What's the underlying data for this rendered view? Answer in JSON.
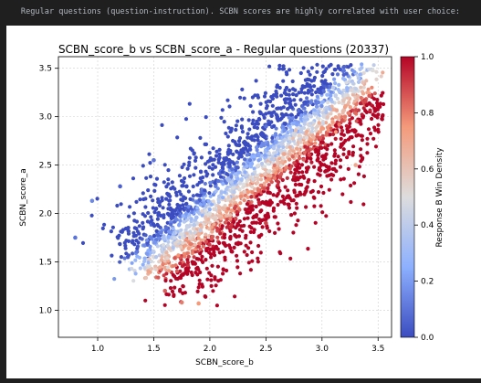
{
  "caption": "Regular questions (question-instruction). SCBN scores are highly correlated with user choice:",
  "chart_data": {
    "type": "scatter",
    "title": "SCBN_score_b vs SCBN_score_a - Regular questions (20337)",
    "xlabel": "SCBN_score_b",
    "ylabel": "SCBN_score_a",
    "xlim": [
      0.65,
      3.62
    ],
    "ylim": [
      0.72,
      3.62
    ],
    "xticks": [
      "1.0",
      "1.5",
      "2.0",
      "2.5",
      "3.0",
      "3.5"
    ],
    "yticks": [
      "1.0",
      "1.5",
      "2.0",
      "2.5",
      "3.0",
      "3.5"
    ],
    "grid": true,
    "colormap": "coolwarm",
    "colorbar": {
      "label": "Response B Win Density",
      "range": [
        0.0,
        1.0
      ],
      "ticks": [
        "0.0",
        "0.2",
        "0.4",
        "0.6",
        "0.8",
        "1.0"
      ]
    },
    "point_count": 20337,
    "relationship": "strong positive correlation along the diagonal; points above the diagonal (A higher than B) are blue (low B win density), points below the diagonal are red (high B win density)",
    "sample_points": [
      {
        "x": 0.8,
        "y": 1.75,
        "density": 0.1
      },
      {
        "x": 0.95,
        "y": 2.13,
        "density": 0.15
      },
      {
        "x": 1.2,
        "y": 2.28,
        "density": 0.05
      },
      {
        "x": 1.5,
        "y": 2.55,
        "density": 0.1
      },
      {
        "x": 1.6,
        "y": 1.2,
        "density": 0.85
      },
      {
        "x": 1.75,
        "y": 1.08,
        "density": 0.8
      },
      {
        "x": 1.9,
        "y": 1.07,
        "density": 0.75
      },
      {
        "x": 2.0,
        "y": 2.0,
        "density": 0.5
      },
      {
        "x": 2.3,
        "y": 2.3,
        "density": 0.5
      },
      {
        "x": 2.5,
        "y": 1.9,
        "density": 0.9
      },
      {
        "x": 2.5,
        "y": 2.9,
        "density": 0.1
      },
      {
        "x": 2.8,
        "y": 2.8,
        "density": 0.55
      },
      {
        "x": 3.1,
        "y": 3.3,
        "density": 0.4
      },
      {
        "x": 3.3,
        "y": 2.5,
        "density": 0.7
      },
      {
        "x": 3.45,
        "y": 3.48,
        "density": 0.5
      }
    ]
  }
}
